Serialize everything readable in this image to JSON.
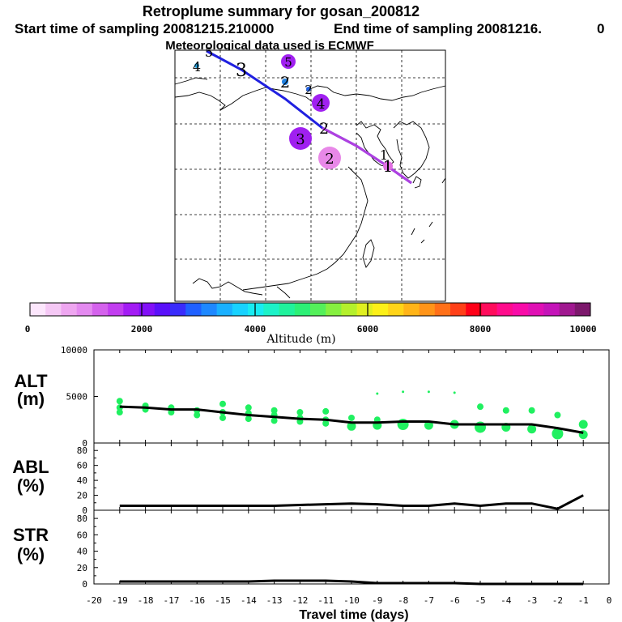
{
  "header": {
    "title": "Retroplume summary for gosan_200812",
    "start_text": "Start time of sampling 20081215.210000",
    "end_text": "End time of sampling 20081216.",
    "end_suffix": "0",
    "met_text": "Meteorological data used is ECMWF"
  },
  "colorbar": {
    "label": "Altitude (m)",
    "ticks": [
      "0",
      "2000",
      "4000",
      "6000",
      "8000",
      "10000"
    ],
    "colors": [
      "#fce6fc",
      "#f5c8f5",
      "#eea6f0",
      "#e48af0",
      "#d462ec",
      "#c23ef0",
      "#a31cf4",
      "#8210f8",
      "#5a10fa",
      "#3a2cfc",
      "#2060ff",
      "#1e88ff",
      "#1ab0ff",
      "#18d2ff",
      "#18ecf2",
      "#1cf2c8",
      "#20f29c",
      "#2cf076",
      "#54f05a",
      "#86f040",
      "#b4f02c",
      "#e0f020",
      "#fcf018",
      "#ffd418",
      "#ffb418",
      "#ff9418",
      "#ff7018",
      "#ff4018",
      "#ff0018",
      "#ff0c5c",
      "#ff0c8c",
      "#f80ca8",
      "#e010b4",
      "#c414b8",
      "#a01890",
      "#7c186c"
    ]
  },
  "map": {
    "markers": [
      {
        "label": "1",
        "color": "#e070e0",
        "size": "small"
      },
      {
        "label": "2",
        "color": "#e888e8",
        "size": "large"
      },
      {
        "label": "3",
        "color": "#a020f0",
        "size": "large"
      },
      {
        "label": "4",
        "color": "#a020f0",
        "size": "medium"
      },
      {
        "label": "5",
        "color": "#a020f0",
        "size": "small"
      },
      {
        "label": "1",
        "color": "#3040e0",
        "size": "none"
      },
      {
        "label": "2",
        "color": "#3040e0",
        "size": "none"
      },
      {
        "label": "2",
        "color": "#2080e0",
        "size": "tiny"
      },
      {
        "label": "3",
        "color": "#2040e0",
        "size": "none"
      },
      {
        "label": "4",
        "color": "#20a0e0",
        "size": "tiny"
      },
      {
        "label": "5",
        "color": "#2040e0",
        "size": "none"
      }
    ]
  },
  "panels": {
    "alt_label": "ALT",
    "alt_unit": "(m)",
    "abl_label": "ABL",
    "abl_unit": "(%)",
    "str_label": "STR",
    "str_unit": "(%)"
  },
  "chart_data": [
    {
      "type": "line",
      "name": "ALT",
      "ylabel": "ALT (m)",
      "ylim": [
        0,
        10000
      ],
      "yticks": [
        "10000",
        "5000",
        "0"
      ],
      "x": [
        -19,
        -18,
        -17,
        -16,
        -15,
        -14,
        -13,
        -12,
        -11,
        -10,
        -9,
        -8,
        -7,
        -6,
        -5,
        -4,
        -3,
        -2,
        -1
      ],
      "values": [
        3900,
        3800,
        3600,
        3600,
        3300,
        3000,
        2800,
        2600,
        2500,
        2200,
        2200,
        2300,
        2300,
        2000,
        2000,
        2000,
        2000,
        1600,
        1100
      ],
      "scatter_points": [
        {
          "x": -19,
          "y": 4500
        },
        {
          "x": -19,
          "y": 3800
        },
        {
          "x": -19,
          "y": 3300
        },
        {
          "x": -18,
          "y": 4000
        },
        {
          "x": -18,
          "y": 3600
        },
        {
          "x": -17,
          "y": 3800
        },
        {
          "x": -17,
          "y": 3300
        },
        {
          "x": -16,
          "y": 3500
        },
        {
          "x": -16,
          "y": 3000
        },
        {
          "x": -15,
          "y": 4200
        },
        {
          "x": -15,
          "y": 3300
        },
        {
          "x": -15,
          "y": 2700
        },
        {
          "x": -14,
          "y": 3800
        },
        {
          "x": -14,
          "y": 3200
        },
        {
          "x": -14,
          "y": 2600
        },
        {
          "x": -13,
          "y": 3500
        },
        {
          "x": -13,
          "y": 3000
        },
        {
          "x": -13,
          "y": 2400
        },
        {
          "x": -12,
          "y": 3300
        },
        {
          "x": -12,
          "y": 2700
        },
        {
          "x": -12,
          "y": 2300
        },
        {
          "x": -11,
          "y": 3400
        },
        {
          "x": -11,
          "y": 2500
        },
        {
          "x": -11,
          "y": 2100
        },
        {
          "x": -10,
          "y": 2700
        },
        {
          "x": -10,
          "y": 1800
        },
        {
          "x": -9,
          "y": 5300
        },
        {
          "x": -9,
          "y": 2500
        },
        {
          "x": -9,
          "y": 1900
        },
        {
          "x": -8,
          "y": 5500
        },
        {
          "x": -8,
          "y": 2000
        },
        {
          "x": -7,
          "y": 5500
        },
        {
          "x": -7,
          "y": 1900
        },
        {
          "x": -6,
          "y": 5400
        },
        {
          "x": -6,
          "y": 2000
        },
        {
          "x": -5,
          "y": 3900
        },
        {
          "x": -5,
          "y": 1700
        },
        {
          "x": -4,
          "y": 3500
        },
        {
          "x": -4,
          "y": 1700
        },
        {
          "x": -3,
          "y": 3500
        },
        {
          "x": -3,
          "y": 1500
        },
        {
          "x": -2,
          "y": 3000
        },
        {
          "x": -2,
          "y": 1000
        },
        {
          "x": -1,
          "y": 2000
        },
        {
          "x": -1,
          "y": 900
        }
      ],
      "point_color": "#20f060"
    },
    {
      "type": "line",
      "name": "ABL",
      "ylabel": "ABL (%)",
      "ylim": [
        0,
        90
      ],
      "yticks": [
        "80",
        "60",
        "40",
        "20",
        "0"
      ],
      "x": [
        -19,
        -18,
        -17,
        -16,
        -15,
        -14,
        -13,
        -12,
        -11,
        -10,
        -9,
        -8,
        -7,
        -6,
        -5,
        -4,
        -3,
        -2,
        -1
      ],
      "values": [
        6,
        6,
        6,
        6,
        6,
        6,
        6,
        7,
        8,
        9,
        8,
        6,
        6,
        9,
        6,
        9,
        9,
        2,
        20
      ]
    },
    {
      "type": "line",
      "name": "STR",
      "ylabel": "STR (%)",
      "ylim": [
        0,
        90
      ],
      "yticks": [
        "80",
        "60",
        "40",
        "20",
        "0"
      ],
      "x": [
        -19,
        -18,
        -17,
        -16,
        -15,
        -14,
        -13,
        -12,
        -11,
        -10,
        -9,
        -8,
        -7,
        -6,
        -5,
        -4,
        -3,
        -2,
        -1
      ],
      "values": [
        3,
        3,
        3,
        3,
        3,
        3,
        4,
        4,
        4,
        3,
        1,
        1,
        1,
        1,
        0,
        0,
        0,
        0,
        0
      ]
    }
  ],
  "xaxis": {
    "label": "Travel time (days)",
    "ticks": [
      "-20",
      "-19",
      "-18",
      "-17",
      "-16",
      "-15",
      "-14",
      "-13",
      "-12",
      "-11",
      "-10",
      "-9",
      "-8",
      "-7",
      "-6",
      "-5",
      "-4",
      "-3",
      "-2",
      "-1",
      "0"
    ]
  }
}
